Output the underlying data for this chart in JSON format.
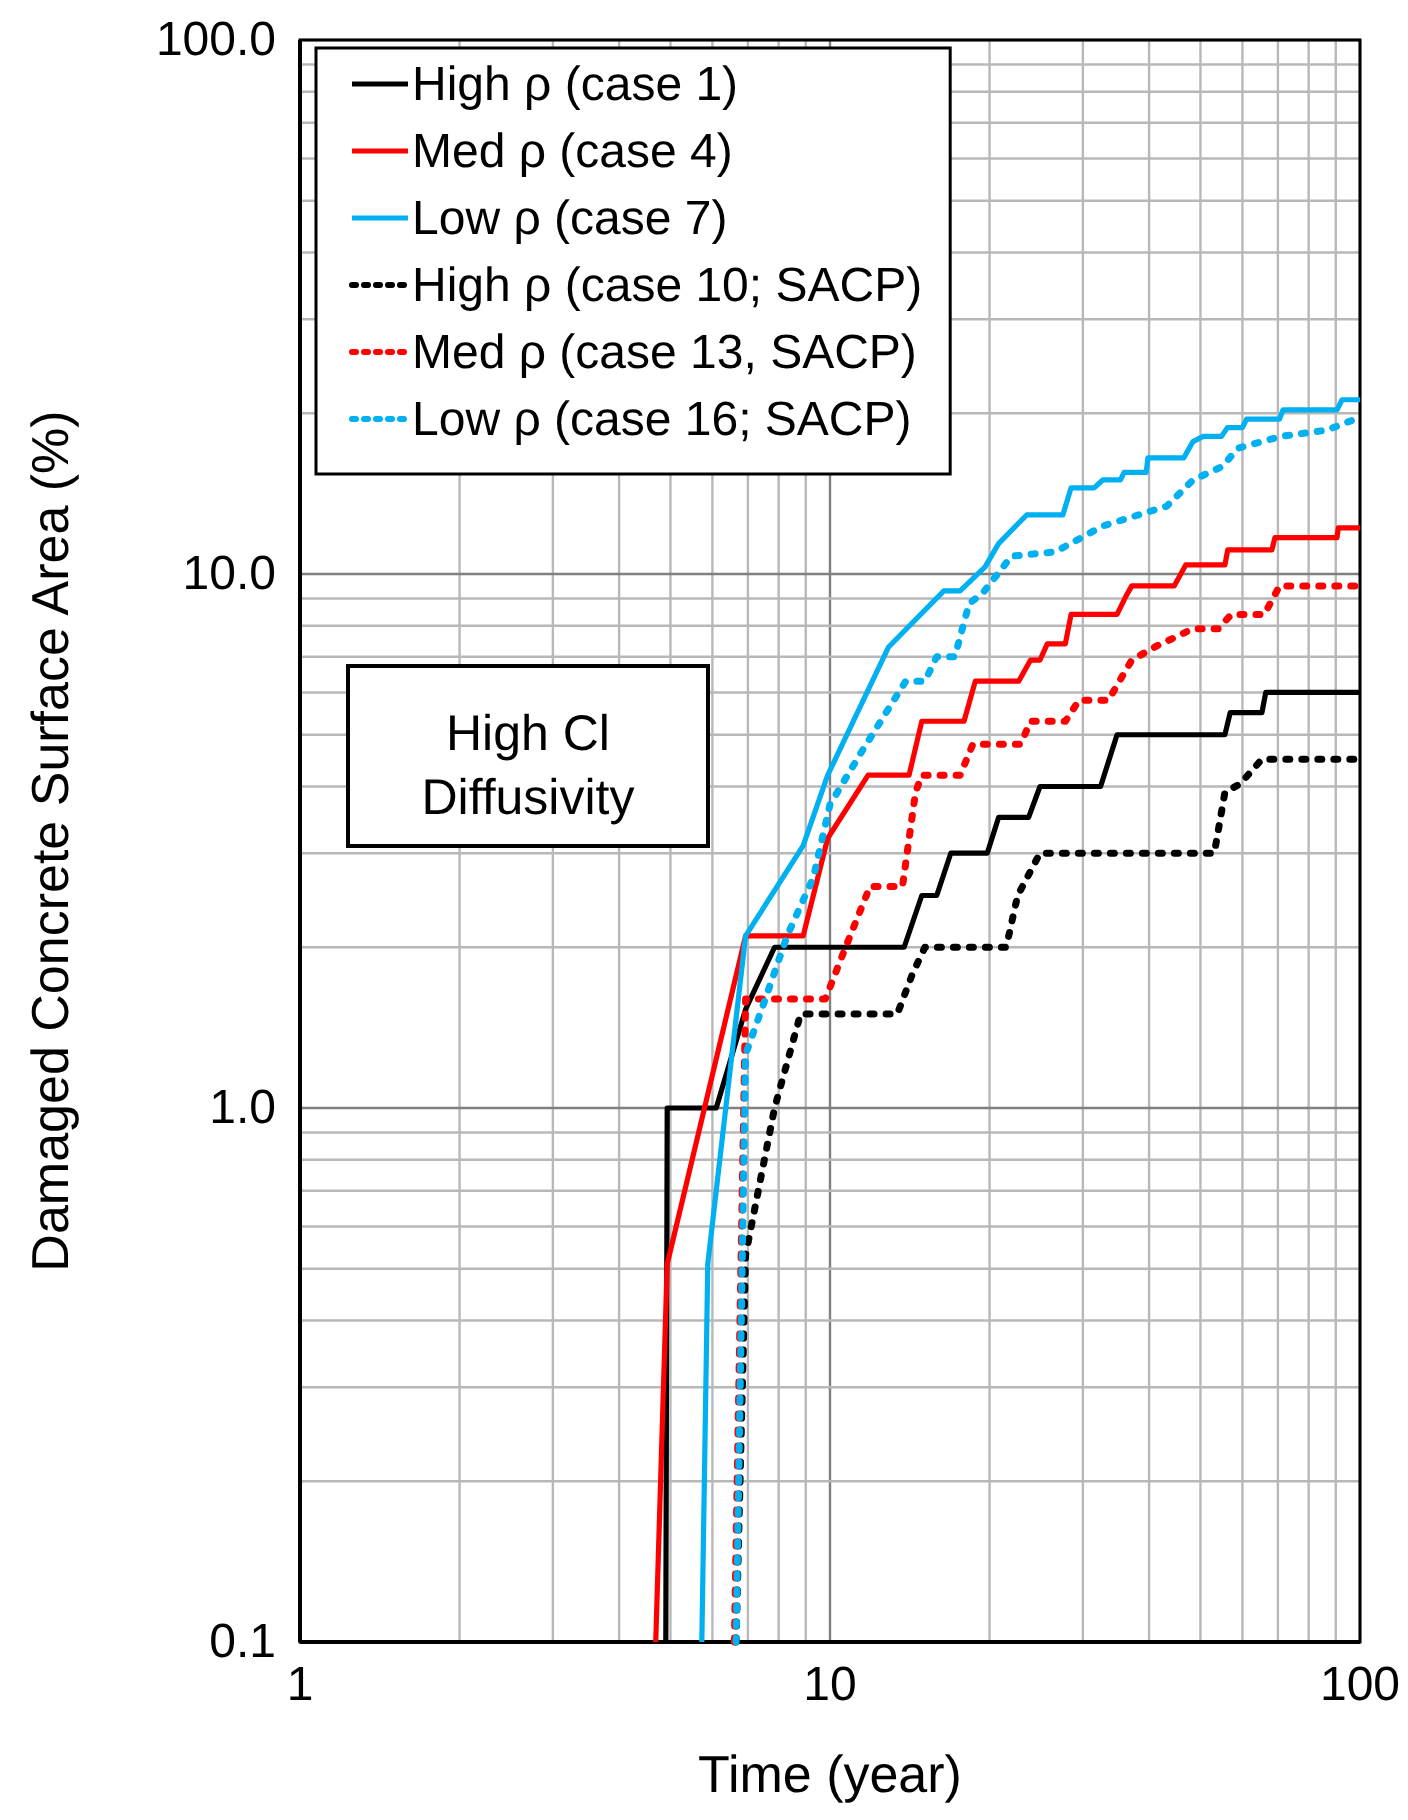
{
  "chart_data": {
    "type": "line",
    "xlabel": "Time (year)",
    "ylabel": "Damaged Concrete Surface Area (%)",
    "log": "xy",
    "grid": true,
    "legend": "top left",
    "marker": "none",
    "xlim": [
      1,
      100
    ],
    "xticks": [
      1,
      10,
      100
    ],
    "ylim": [
      0.1,
      100
    ],
    "yticks": [
      {
        "value": 0.1,
        "label": "0.1"
      },
      {
        "value": 1,
        "label": "1.0"
      },
      {
        "value": 10,
        "label": "10.0"
      },
      {
        "value": 100,
        "label": "100.0"
      }
    ],
    "annotations": [
      "High Cl\nDiffusivity"
    ],
    "series": [
      {
        "name": "High ρ (case 1)",
        "color": "#000000",
        "line_style": "solid",
        "x": [
          4.9,
          4.93,
          6.1,
          6.93,
          7.86,
          13.8,
          14.9,
          15.9,
          16.9,
          19.8,
          20.8,
          23.7,
          24.9,
          32.4,
          34.8,
          55.6,
          56.9,
          65.3,
          66.4,
          100
        ],
        "values": [
          0.1,
          1.0,
          1.0,
          1.53,
          2.0,
          2.0,
          2.5,
          2.5,
          3.0,
          3.0,
          3.5,
          3.5,
          4.0,
          4.0,
          5.0,
          5.0,
          5.5,
          5.5,
          6.0,
          6.0
        ]
      },
      {
        "name": "Med ρ (case 4)",
        "color": "#ff0000",
        "line_style": "solid",
        "x": [
          4.69,
          4.93,
          6.93,
          8.9,
          9.9,
          11.8,
          14.1,
          14.9,
          17.9,
          18.8,
          22.7,
          23.9,
          24.9,
          25.7,
          27.8,
          28.5,
          34.8,
          36.2,
          37.1,
          44.6,
          46.9,
          55.6,
          56.3,
          68.2,
          69.1,
          90.5,
          91,
          100
        ],
        "values": [
          0.1,
          0.51,
          2.1,
          2.1,
          3.2,
          4.2,
          4.2,
          5.3,
          5.3,
          6.3,
          6.3,
          6.9,
          6.9,
          7.4,
          7.4,
          8.4,
          8.4,
          9.1,
          9.5,
          9.5,
          10.4,
          10.4,
          11.1,
          11.1,
          11.7,
          11.7,
          12.2,
          12.2
        ]
      },
      {
        "name": "Low ρ (case 7)",
        "color": "#00b0f0",
        "line_style": "solid",
        "x": [
          5.73,
          5.88,
          6.93,
          8.9,
          9.9,
          12.9,
          16.4,
          17.6,
          19.6,
          20.8,
          23.5,
          27.5,
          28.5,
          31.5,
          32.7,
          35.3,
          35.9,
          39.5,
          39.8,
          46.5,
          48.4,
          50.6,
          54.8,
          56.2,
          60,
          61.1,
          70.5,
          71.6,
          90.5,
          92.5,
          100
        ],
        "values": [
          0.1,
          0.51,
          2.1,
          3.1,
          4.2,
          7.3,
          9.3,
          9.3,
          10.3,
          11.4,
          12.9,
          12.9,
          14.5,
          14.5,
          15.0,
          15.0,
          15.5,
          15.5,
          16.5,
          16.5,
          17.7,
          18.1,
          18.1,
          18.8,
          18.8,
          19.5,
          19.5,
          20.3,
          20.3,
          21.2,
          21.2
        ]
      },
      {
        "name": "High ρ (case 10; SACP)",
        "color": "#000000",
        "line_style": "dotted",
        "x": [
          6.65,
          6.93,
          7.86,
          8.8,
          13.4,
          14.3,
          15.1,
          21.5,
          22.6,
          24.9,
          53.1,
          55.6,
          59.5,
          65.3,
          100
        ],
        "values": [
          0.1,
          0.53,
          1.0,
          1.5,
          1.5,
          1.78,
          2.0,
          2.0,
          2.5,
          3.0,
          3.0,
          3.9,
          4.05,
          4.5,
          4.5
        ]
      },
      {
        "name": "Med ρ (case 13, SACP)",
        "color": "#ff0000",
        "line_style": "dotted",
        "x": [
          6.6,
          6.93,
          9.8,
          10.7,
          11.9,
          13.7,
          14.5,
          14.9,
          17.6,
          18.6,
          22.9,
          23.9,
          27.8,
          29.5,
          33.5,
          37.1,
          41,
          48.4,
          54,
          57.2,
          66,
          70.5,
          100
        ],
        "values": [
          0.1,
          1.6,
          1.6,
          2.0,
          2.6,
          2.6,
          3.9,
          4.2,
          4.2,
          4.8,
          4.8,
          5.3,
          5.3,
          5.8,
          5.8,
          6.9,
          7.3,
          7.9,
          7.9,
          8.4,
          8.4,
          9.5,
          9.5
        ]
      },
      {
        "name": "Low ρ (case 16; SACP)",
        "color": "#00b0f0",
        "line_style": "dotted",
        "x": [
          6.65,
          6.93,
          7.55,
          8.3,
          9.3,
          10,
          11.4,
          13.9,
          15.1,
          15.9,
          17.2,
          18.3,
          19.4,
          22,
          26.6,
          32.7,
          43.2,
          48.4,
          55,
          58.8,
          71,
          86.6,
          98,
          100
        ],
        "values": [
          0.1,
          1.26,
          1.6,
          2.1,
          2.7,
          3.7,
          4.6,
          6.3,
          6.3,
          7.0,
          7.0,
          8.8,
          9.2,
          10.8,
          11.0,
          12.3,
          13.4,
          15.0,
          15.9,
          17.2,
          18.1,
          18.6,
          19.5,
          19.6
        ]
      }
    ]
  }
}
